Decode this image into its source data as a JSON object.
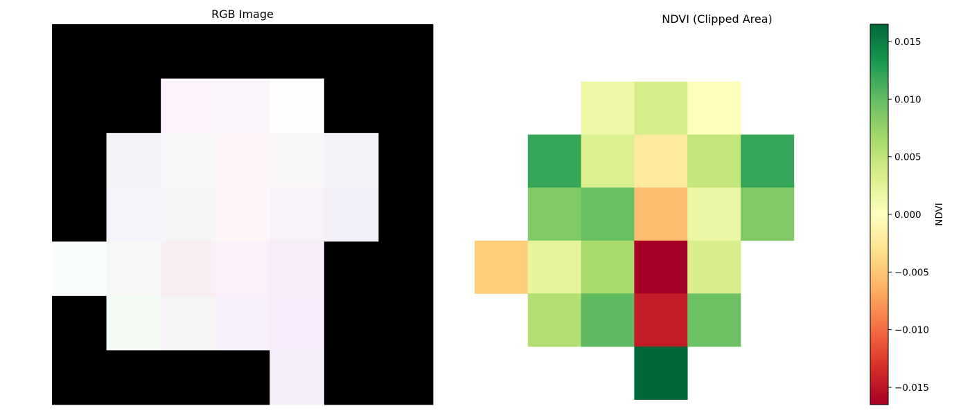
{
  "chart_data": [
    {
      "type": "heatmap",
      "title": "RGB Image",
      "rows": 7,
      "cols": 7,
      "pixels": [
        [
          "#000000",
          "#000000",
          "#000000",
          "#000000",
          "#000000",
          "#000000",
          "#000000"
        ],
        [
          "#000000",
          "#000000",
          "#fdf3fd",
          "#faf5fc",
          "#fefcfd",
          "#000000",
          "#000000"
        ],
        [
          "#000000",
          "#f4f2f6",
          "#f9f6fa",
          "#fdf5f8",
          "#f9f6f8",
          "#f1f3f9",
          "#000000"
        ],
        [
          "#000000",
          "#f3f4f9",
          "#f5f5f8",
          "#fdf5f8",
          "#f8f2f8",
          "#f2eff9",
          "#000000"
        ],
        [
          "#f9fefa",
          "#f7f8f5",
          "#f9edf4",
          "#fbeffa",
          "#f7ecf9",
          "#000000",
          "#000000"
        ],
        [
          "#000000",
          "#f4fbf4",
          "#f6f3f7",
          "#f7effc",
          "#f5ebfb",
          "#000000",
          "#000000"
        ],
        [
          "#000000",
          "#000000",
          "#000000",
          "#000000",
          "#f4eef9",
          "#000000",
          "#000000"
        ]
      ]
    },
    {
      "type": "heatmap",
      "title": "NDVI (Clipped Area)",
      "rows": 6,
      "cols": 6,
      "values": [
        [
          null,
          null,
          0.0015,
          0.0035,
          0.0003,
          null
        ],
        [
          null,
          0.012,
          0.0032,
          -0.0022,
          0.0048,
          0.012
        ],
        [
          null,
          0.0085,
          0.0098,
          -0.0055,
          0.0017,
          0.0085
        ],
        [
          -0.0045,
          0.0022,
          0.0065,
          -0.0165,
          0.0033,
          null
        ],
        [
          null,
          0.0058,
          0.0102,
          -0.0145,
          0.0095,
          null
        ],
        [
          null,
          null,
          null,
          0.0165,
          null,
          null
        ]
      ],
      "vmin": -0.0165,
      "vmax": 0.0165,
      "colormap": "RdYlGn",
      "colorbar": {
        "label": "NDVI",
        "ticks": [
          0.015,
          0.01,
          0.005,
          0.0,
          -0.005,
          -0.01,
          -0.015
        ],
        "tick_labels": [
          "0.015",
          "0.010",
          "0.005",
          "0.000",
          "−0.005",
          "−0.010",
          "−0.015"
        ]
      }
    }
  ]
}
